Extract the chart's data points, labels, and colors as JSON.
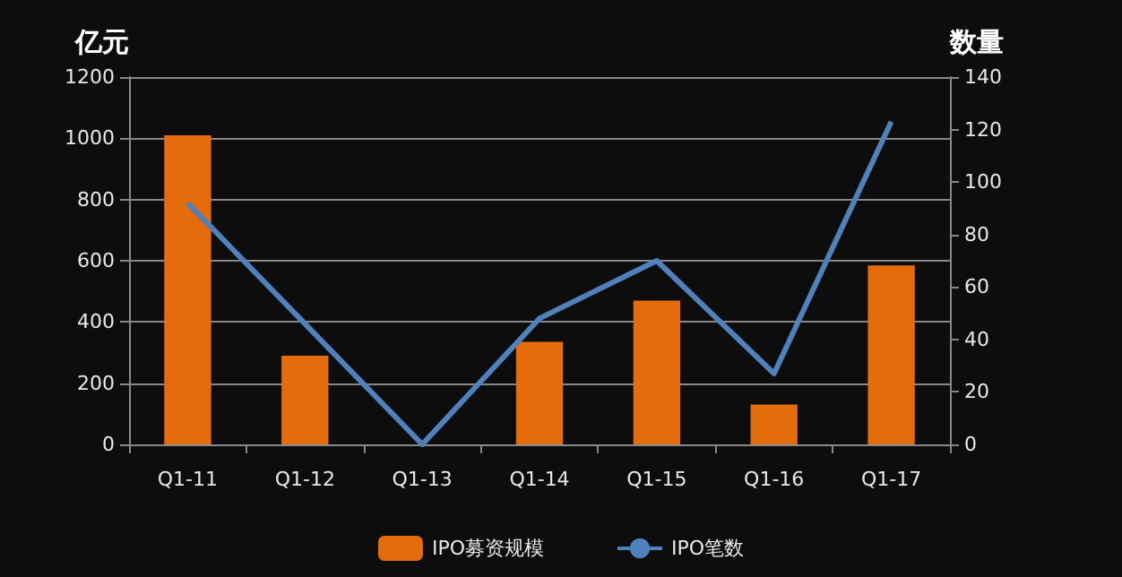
{
  "chart_data": {
    "type": "bar",
    "ylabel": "亿元",
    "y2label": "数量",
    "categories": [
      "Q1-11",
      "Q1-12",
      "Q1-13",
      "Q1-14",
      "Q1-15",
      "Q1-16",
      "Q1-17"
    ],
    "series": [
      {
        "name": "IPO募资规模",
        "color": "#e46c0a",
        "values": [
          1010,
          290,
          0,
          335,
          470,
          130,
          585
        ]
      },
      {
        "name": "IPO笔数",
        "type": "line",
        "axis": "y2",
        "color": "#4f81bd",
        "values": [
          92,
          46,
          0,
          48,
          70,
          27,
          123
        ]
      }
    ],
    "ylim": [
      0,
      1200
    ],
    "yticks": [
      0,
      200,
      400,
      600,
      800,
      1000,
      1200
    ],
    "y2lim": [
      0,
      140
    ],
    "y2ticks": [
      0,
      20,
      40,
      60,
      80,
      100,
      120,
      140
    ],
    "grid": "y",
    "legend": "bottom",
    "marker": "none"
  }
}
